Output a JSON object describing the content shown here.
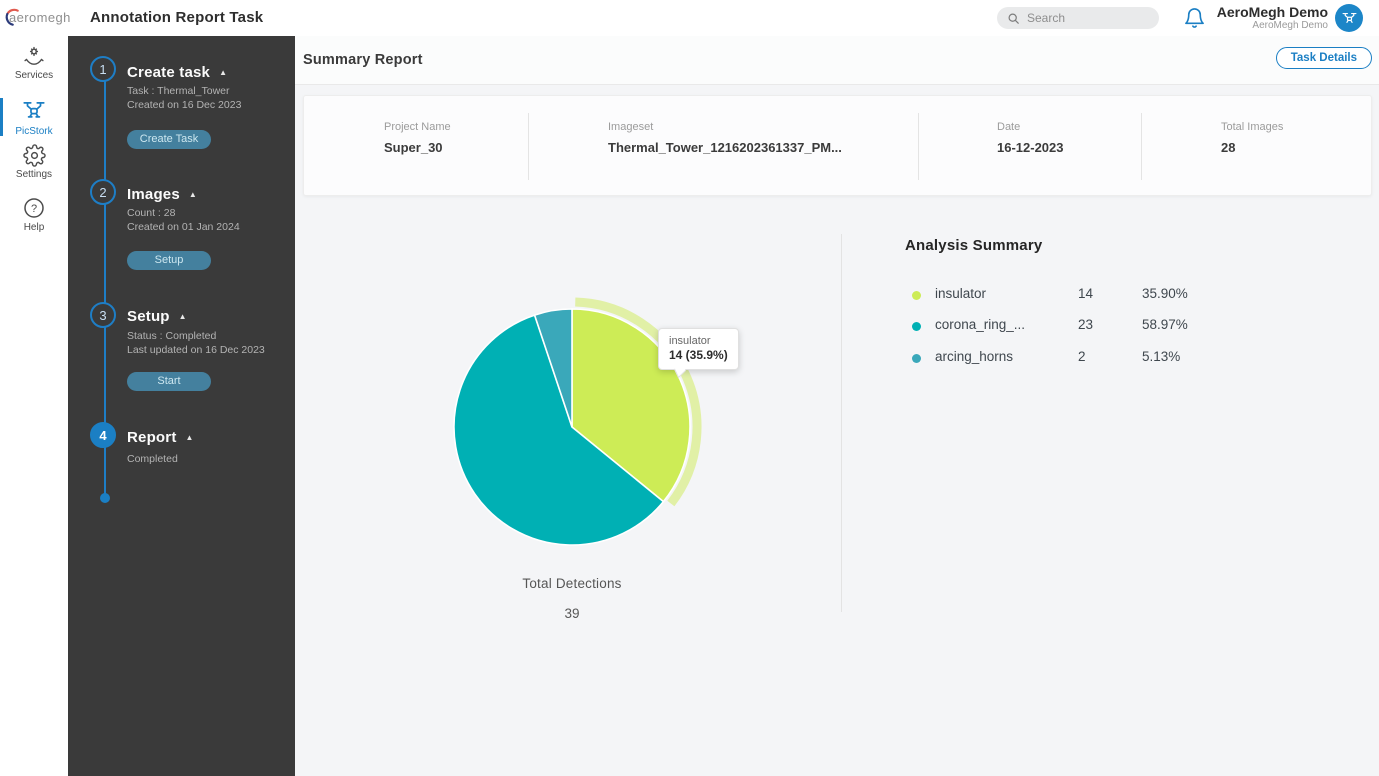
{
  "topbar": {
    "logo_text": "aeromegh",
    "title": "Annotation Report Task",
    "search_placeholder": "Search",
    "user_name": "AeroMegh Demo",
    "user_subtitle": "AeroMegh Demo"
  },
  "icons": {
    "collapse": "▲",
    "question": "?"
  },
  "left_rail": {
    "items": [
      {
        "label": "Services"
      },
      {
        "label": "PicStork"
      },
      {
        "label": "Settings"
      },
      {
        "label": "Help"
      }
    ]
  },
  "sidebar": {
    "steps": [
      {
        "number": "1",
        "title": "Create task",
        "line1": "Task : Thermal_Tower",
        "line2": "Created on 16 Dec 2023",
        "button": "Create Task"
      },
      {
        "number": "2",
        "title": "Images",
        "line1": "Count : 28",
        "line2": "Created on 01 Jan 2024",
        "button": "Setup"
      },
      {
        "number": "3",
        "title": "Setup",
        "line1": "Status : Completed",
        "line2": "Last updated on 16 Dec 2023",
        "button": "Start"
      },
      {
        "number": "4",
        "title": "Report",
        "line1": "Completed",
        "line2": "",
        "button": ""
      }
    ]
  },
  "main": {
    "heading": "Summary Report",
    "task_details_button": "Task Details",
    "summary_fields": [
      {
        "label": "Project Name",
        "value": "Super_30"
      },
      {
        "label": "Imageset",
        "value": "Thermal_Tower_1216202361337_PM..."
      },
      {
        "label": "Date",
        "value": "16-12-2023"
      },
      {
        "label": "Total Images",
        "value": "28"
      }
    ],
    "analysis_title": "Analysis Summary"
  },
  "chart_data": {
    "type": "pie",
    "title": "Total Detections",
    "total_label": "Total Detections",
    "total_value": "39",
    "legend_position": "right",
    "start_angle_deg": 0,
    "direction": "clockwise",
    "slices": [
      {
        "label": "insulator",
        "count": "14",
        "percent": 35.9,
        "percent_label": "35.90%",
        "color": "#cdec56",
        "highlighted": true
      },
      {
        "label": "corona_ring_...",
        "count": "23",
        "percent": 58.97,
        "percent_label": "58.97%",
        "color": "#00b0b4",
        "highlighted": false
      },
      {
        "label": "arcing_horns",
        "count": "2",
        "percent": 5.13,
        "percent_label": "5.13%",
        "color": "#3aa8ba",
        "highlighted": false
      }
    ],
    "tooltip": {
      "label": "insulator",
      "value": "14 (35.9%)"
    }
  },
  "colors": {
    "accent_blue": "#1b7fc4",
    "sidebar_bg": "#3a3a3a",
    "step_button_bg": "#44809e",
    "highlight_halo": "rgba(205,236,86,0.5)"
  }
}
